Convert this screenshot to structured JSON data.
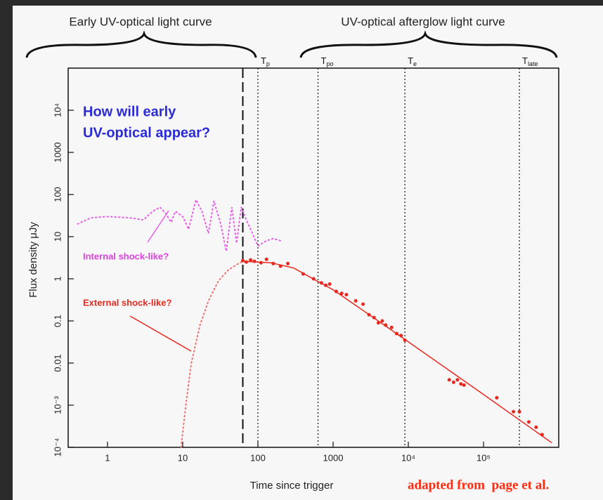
{
  "chart_data": {
    "type": "line",
    "xscale": "log",
    "yscale": "log",
    "xlabel": "Time since trigger",
    "ylabel": "Flux density μJy",
    "caption": "adapted from  page et al.",
    "xlim": [
      0.3,
      1000000
    ],
    "ylim": [
      0.0001,
      100000
    ],
    "xticks": [
      1,
      10,
      100,
      1000,
      {
        "value": 10000,
        "label": "10⁴"
      },
      {
        "value": 100000,
        "label": "10⁵"
      }
    ],
    "yticks": [
      {
        "value": 0.0001,
        "label": "10⁻⁴"
      },
      {
        "value": 0.001,
        "label": "10⁻³"
      },
      0.01,
      0.1,
      1,
      10,
      100,
      1000,
      {
        "value": 10000,
        "label": "10⁴"
      }
    ],
    "brackets": [
      "Early UV-optical light curve",
      "UV-optical afterglow light curve"
    ],
    "question": [
      "How will early",
      "UV-optical appear?"
    ],
    "question_color": "#2b2bd6",
    "annotations": [
      {
        "text": "Internal shock-like?",
        "color": "#e040e0"
      },
      {
        "text": "External shock-like?",
        "color": "#e8281e"
      }
    ],
    "markers": [
      {
        "x": 63,
        "style": "dashed"
      },
      {
        "x": 100,
        "style": "dotted",
        "main": "T",
        "sub": "p"
      },
      {
        "x": 630,
        "style": "dotted",
        "main": "T",
        "sub": "po"
      },
      {
        "x": 9000,
        "style": "dotted",
        "main": "T",
        "sub": "e"
      },
      {
        "x": 300000,
        "style": "dotted",
        "main": "T",
        "sub": "late"
      }
    ],
    "series": [
      {
        "style": "dotted",
        "color": "#e85ee8",
        "x": [
          0.4,
          0.6,
          1,
          2,
          3,
          4,
          5,
          6,
          7,
          8,
          10,
          12,
          15,
          18,
          22,
          26,
          32,
          38,
          45,
          52,
          60,
          70,
          80,
          100,
          130,
          160,
          200
        ],
        "values": [
          20,
          28,
          30,
          28,
          25,
          40,
          50,
          35,
          22,
          40,
          30,
          15,
          75,
          40,
          12,
          70,
          20,
          4.5,
          50,
          7,
          50,
          25,
          15,
          6,
          8,
          9,
          8
        ]
      },
      {
        "style": "dotted",
        "color": "#f07070",
        "x": [
          9.5,
          11,
          13,
          17,
          22,
          30,
          40,
          55,
          63
        ],
        "values": [
          0.0001,
          0.001,
          0.01,
          0.08,
          0.3,
          0.9,
          1.6,
          2.3,
          2.6
        ]
      },
      {
        "style": "solid",
        "color": "#e8281e",
        "x": [
          63,
          150,
          300,
          600,
          1000,
          10000,
          100000,
          800000
        ],
        "values": [
          2.6,
          2.4,
          1.8,
          0.9,
          0.55,
          0.032,
          0.0018,
          0.00013
        ]
      },
      {
        "style": "points",
        "color": "#e8281e",
        "x": [
          63,
          70,
          80,
          90,
          110,
          130,
          160,
          200,
          250,
          400,
          550,
          700,
          800,
          900,
          1100,
          1300,
          1500,
          2000,
          2500,
          3000,
          3500,
          4000,
          4500,
          5000,
          6000,
          7000,
          8000,
          9000,
          35000,
          40000,
          45000,
          50000,
          55000,
          150000,
          250000,
          300000,
          400000,
          500000,
          600000
        ],
        "values": [
          2.7,
          2.5,
          2.8,
          2.6,
          2.4,
          2.9,
          2.3,
          2.0,
          2.3,
          1.3,
          1.0,
          0.8,
          0.7,
          0.75,
          0.5,
          0.45,
          0.42,
          0.3,
          0.25,
          0.14,
          0.12,
          0.09,
          0.1,
          0.08,
          0.07,
          0.05,
          0.045,
          0.035,
          0.004,
          0.0035,
          0.004,
          0.0032,
          0.003,
          0.0015,
          0.0007,
          0.0007,
          0.0004,
          0.0003,
          0.0002
        ]
      }
    ]
  }
}
